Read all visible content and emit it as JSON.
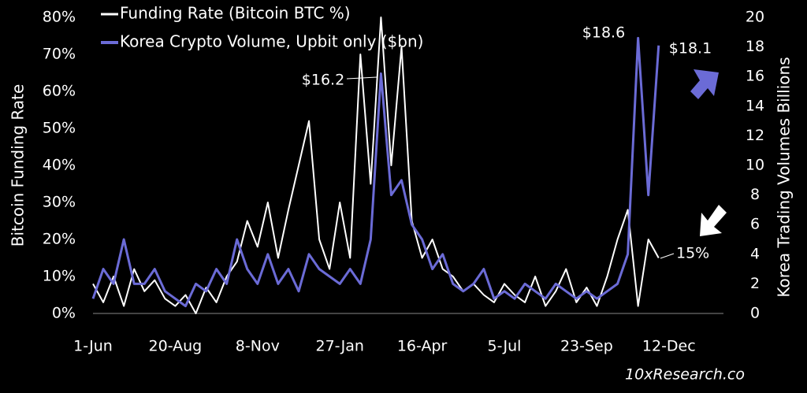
{
  "chart_data": {
    "type": "line",
    "legend": "top-left",
    "ylabel": "Bitcoin Funding Rate",
    "y2label": "Korea Trading  Volumes Billions",
    "ylim": [
      0,
      80
    ],
    "yticks": [
      {
        "value": 0,
        "label": "0%"
      },
      {
        "value": 10,
        "label": "10%"
      },
      {
        "value": 20,
        "label": "20%"
      },
      {
        "value": 30,
        "label": "30%"
      },
      {
        "value": 40,
        "label": "40%"
      },
      {
        "value": 50,
        "label": "50%"
      },
      {
        "value": 60,
        "label": "60%"
      },
      {
        "value": 70,
        "label": "70%"
      },
      {
        "value": 80,
        "label": "80%"
      }
    ],
    "y2lim": [
      0,
      20
    ],
    "y2ticks": [
      0,
      2,
      4,
      6,
      8,
      10,
      12,
      14,
      16,
      18,
      20
    ],
    "categories": [
      "1-Jun",
      null,
      null,
      null,
      null,
      null,
      null,
      null,
      "20-Aug",
      null,
      null,
      null,
      null,
      null,
      null,
      null,
      "8-Nov",
      null,
      null,
      null,
      null,
      null,
      null,
      null,
      "27-Jan",
      null,
      null,
      null,
      null,
      null,
      null,
      null,
      "16-Apr",
      null,
      null,
      null,
      null,
      null,
      null,
      null,
      "5-Jul",
      null,
      null,
      null,
      null,
      null,
      null,
      null,
      "23-Sep",
      null,
      null,
      null,
      null,
      null,
      null,
      null,
      "12-Dec",
      null,
      null,
      null,
      null,
      null
    ],
    "series": [
      {
        "name": "Funding Rate (Bitcoin BTC %)",
        "color": "#ffffff",
        "axis": "y",
        "values": [
          8,
          3,
          10,
          2,
          12,
          6,
          9,
          4,
          2,
          5,
          0,
          7,
          3,
          10,
          14,
          25,
          18,
          30,
          15,
          28,
          40,
          52,
          20,
          12,
          30,
          15,
          70,
          35,
          80,
          40,
          72,
          25,
          15,
          20,
          12,
          10,
          6,
          8,
          5,
          3,
          8,
          5,
          3,
          10,
          2,
          6,
          12,
          3,
          7,
          2,
          10,
          20,
          28,
          2,
          20,
          15,
          null,
          null,
          null,
          null,
          null,
          null
        ]
      },
      {
        "name": "Korea Crypto Volume, Upbit only ($bn)",
        "color": "#6b6bd6",
        "axis": "y2",
        "values": [
          1,
          3,
          2,
          5,
          2,
          2,
          3,
          1.5,
          1,
          0.5,
          2,
          1.5,
          3,
          2,
          5,
          3,
          2,
          4,
          2,
          3,
          1.5,
          4,
          3,
          2.5,
          2,
          3,
          2,
          5,
          16.2,
          8,
          9,
          6,
          5,
          3,
          4,
          2,
          1.5,
          2,
          3,
          1,
          1.5,
          1,
          2,
          1.5,
          1,
          2,
          1.5,
          1,
          1.5,
          1,
          1.5,
          2,
          4,
          18.6,
          8,
          18.1,
          null,
          null,
          null,
          null,
          null,
          null
        ]
      }
    ],
    "annotations": [
      "$18.6",
      "$16.2",
      "$18.1",
      "15%"
    ],
    "source": "10xResearch.co"
  }
}
